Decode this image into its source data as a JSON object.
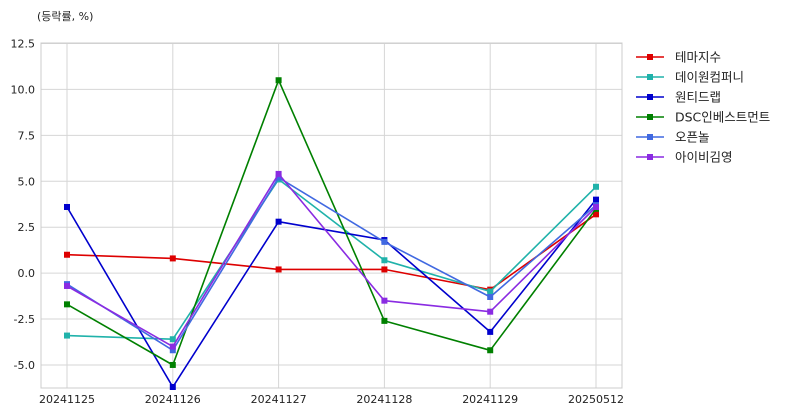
{
  "chart_data": {
    "type": "line",
    "unit_label": "(등락률, %)",
    "categories": [
      "20241125",
      "20241126",
      "20241127",
      "20241128",
      "20241129",
      "20250512"
    ],
    "ylim": [
      -6.2,
      12.5
    ],
    "yticks": [
      -5.0,
      -2.5,
      0.0,
      2.5,
      5.0,
      7.5,
      10.0,
      12.5
    ],
    "ytick_labels": [
      "-5.0",
      "-2.5",
      "0.0",
      "2.5",
      "5.0",
      "7.5",
      "10.0",
      "12.5"
    ],
    "grid": true,
    "legend_position": "right",
    "series": [
      {
        "name": "테마지수",
        "color": "#dd0000",
        "values": [
          1.0,
          0.8,
          0.2,
          0.2,
          -0.9,
          3.2
        ]
      },
      {
        "name": "데이원컴퍼니",
        "color": "#20b2aa",
        "values": [
          -3.4,
          -3.6,
          5.1,
          0.7,
          -1.0,
          4.7
        ]
      },
      {
        "name": "원티드랩",
        "color": "#0000cd",
        "values": [
          3.6,
          -6.2,
          2.8,
          1.8,
          -3.2,
          4.0
        ]
      },
      {
        "name": "DSC인베스트먼트",
        "color": "#008000",
        "values": [
          -1.7,
          -5.0,
          10.5,
          -2.6,
          -4.2,
          3.5
        ]
      },
      {
        "name": "오픈놀",
        "color": "#4169e1",
        "values": [
          -0.6,
          -4.2,
          5.2,
          1.7,
          -1.3,
          3.7
        ]
      },
      {
        "name": "아이비김영",
        "color": "#8a2be2",
        "values": [
          -0.7,
          -4.0,
          5.4,
          -1.5,
          -2.1,
          3.6
        ]
      }
    ]
  }
}
